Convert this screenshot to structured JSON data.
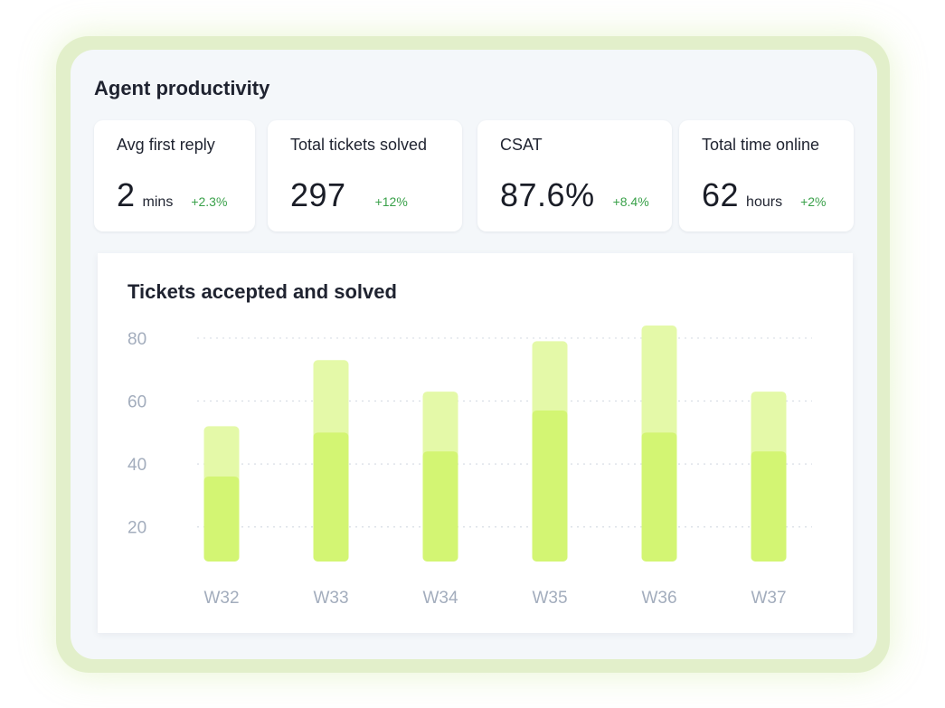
{
  "panel": {
    "title": "Agent productivity"
  },
  "stats": [
    {
      "label": "Avg first reply",
      "value": "2",
      "unit": "mins",
      "delta": "+2.3%"
    },
    {
      "label": "Total tickets solved",
      "value": "297",
      "unit": "",
      "delta": "+12%"
    },
    {
      "label": "CSAT",
      "value": "87.6%",
      "unit": "",
      "delta": "+8.4%"
    },
    {
      "label": "Total time online",
      "value": "62",
      "unit": "hours",
      "delta": "+2%"
    }
  ],
  "colors": {
    "accepted": "#e4f9a8",
    "solved": "#d3f573",
    "delta_positive": "#3aa14a",
    "tick_label": "#a3adbd",
    "gridline": "#d8dde5"
  },
  "chart_data": {
    "type": "bar",
    "title": "Tickets accepted and solved",
    "categories": [
      "W32",
      "W33",
      "W34",
      "W35",
      "W36",
      "W37"
    ],
    "series": [
      {
        "key": "accepted",
        "values": [
          52,
          73,
          63,
          79,
          84,
          63
        ]
      },
      {
        "key": "solved",
        "values": [
          36,
          50,
          44,
          57,
          50,
          44
        ]
      }
    ],
    "y_ticks": [
      20,
      40,
      60,
      80
    ],
    "ylim": [
      9,
      84
    ],
    "grid": true,
    "grid_style": "dotted",
    "stacked_overlay": true
  }
}
